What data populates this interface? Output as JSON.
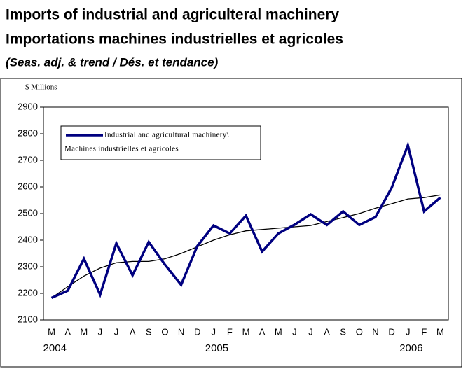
{
  "chart_data": {
    "type": "line",
    "title": "Imports of industrial and agriculteral machinery",
    "title_fr": "Importations machines industrielles et agricoles",
    "subtitle": "(Seas. adj. & trend / Dés. et tendance)",
    "ylabel": "$ Millions",
    "categories": [
      "M",
      "A",
      "M",
      "J",
      "J",
      "A",
      "S",
      "O",
      "N",
      "D",
      "J",
      "F",
      "M",
      "A",
      "M",
      "J",
      "J",
      "A",
      "S",
      "O",
      "N",
      "D",
      "J",
      "F",
      "M"
    ],
    "years": [
      "2004",
      null,
      null,
      null,
      null,
      null,
      null,
      null,
      null,
      null,
      "2005",
      null,
      null,
      null,
      null,
      null,
      null,
      null,
      null,
      null,
      null,
      null,
      "2006",
      null,
      null
    ],
    "series": [
      {
        "name": [
          "Industrial and agricultural machinery\\",
          "Machines industrielles et agricoles"
        ],
        "color": "#000080",
        "width": 3.5,
        "values": [
          2183,
          2210,
          2330,
          2195,
          2388,
          2268,
          2393,
          2308,
          2232,
          2378,
          2455,
          2425,
          2492,
          2357,
          2425,
          2458,
          2497,
          2457,
          2508,
          2457,
          2487,
          2597,
          2757,
          2508,
          2560
        ]
      },
      {
        "color": "#000000",
        "width": 1.3,
        "values": [
          2183,
          2225,
          2265,
          2295,
          2315,
          2320,
          2320,
          2330,
          2350,
          2375,
          2400,
          2420,
          2435,
          2440,
          2445,
          2450,
          2455,
          2470,
          2485,
          2500,
          2520,
          2537,
          2555,
          2560,
          2570
        ]
      }
    ],
    "ylim": [
      2100,
      2900
    ],
    "yticks": [
      2100,
      2200,
      2300,
      2400,
      2500,
      2600,
      2700,
      2800,
      2900
    ],
    "grid": false,
    "legend": "upper left"
  }
}
